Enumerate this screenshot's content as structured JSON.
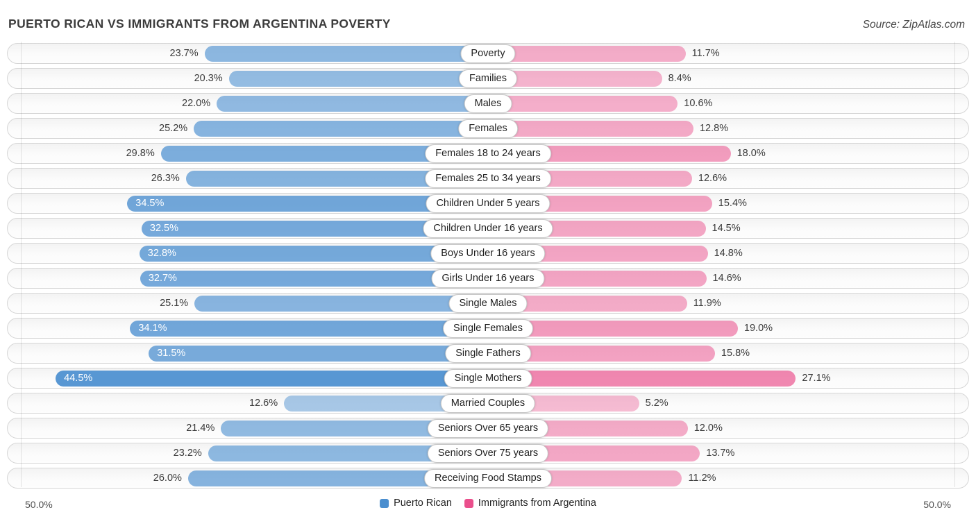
{
  "header": {
    "title": "PUERTO RICAN VS IMMIGRANTS FROM ARGENTINA POVERTY",
    "source": "Source: ZipAtlas.com"
  },
  "chart_data": {
    "type": "bar",
    "variant": "butterfly",
    "title": "Puerto Rican vs Immigrants from Argentina Poverty",
    "categories": [
      "Poverty",
      "Families",
      "Males",
      "Females",
      "Females 18 to 24 years",
      "Females 25 to 34 years",
      "Children Under 5 years",
      "Children Under 16 years",
      "Boys Under 16 years",
      "Girls Under 16 years",
      "Single Males",
      "Single Females",
      "Single Fathers",
      "Single Mothers",
      "Married Couples",
      "Seniors Over 65 years",
      "Seniors Over 75 years",
      "Receiving Food Stamps"
    ],
    "series": [
      {
        "name": "Puerto Rican",
        "side": "left",
        "color": "#4a8ecf",
        "values": [
          23.7,
          20.3,
          22.0,
          25.2,
          29.8,
          26.3,
          34.5,
          32.5,
          32.8,
          32.7,
          25.1,
          34.1,
          31.5,
          44.5,
          12.6,
          21.4,
          23.2,
          26.0
        ]
      },
      {
        "name": "Immigrants from Argentina",
        "side": "right",
        "color": "#ea4f8c",
        "values": [
          11.7,
          8.4,
          10.6,
          12.8,
          18.0,
          12.6,
          15.4,
          14.5,
          14.8,
          14.6,
          11.9,
          19.0,
          15.8,
          27.1,
          5.2,
          12.0,
          13.7,
          11.2
        ]
      }
    ],
    "value_suffix": "%",
    "xlim": [
      0,
      50
    ],
    "axis_left_label": "50.0%",
    "axis_right_label": "50.0%",
    "legend_position": "bottom-center",
    "grid": "edge-gridlines"
  },
  "footer": {
    "left_axis_label": "50.0%",
    "right_axis_label": "50.0%"
  }
}
